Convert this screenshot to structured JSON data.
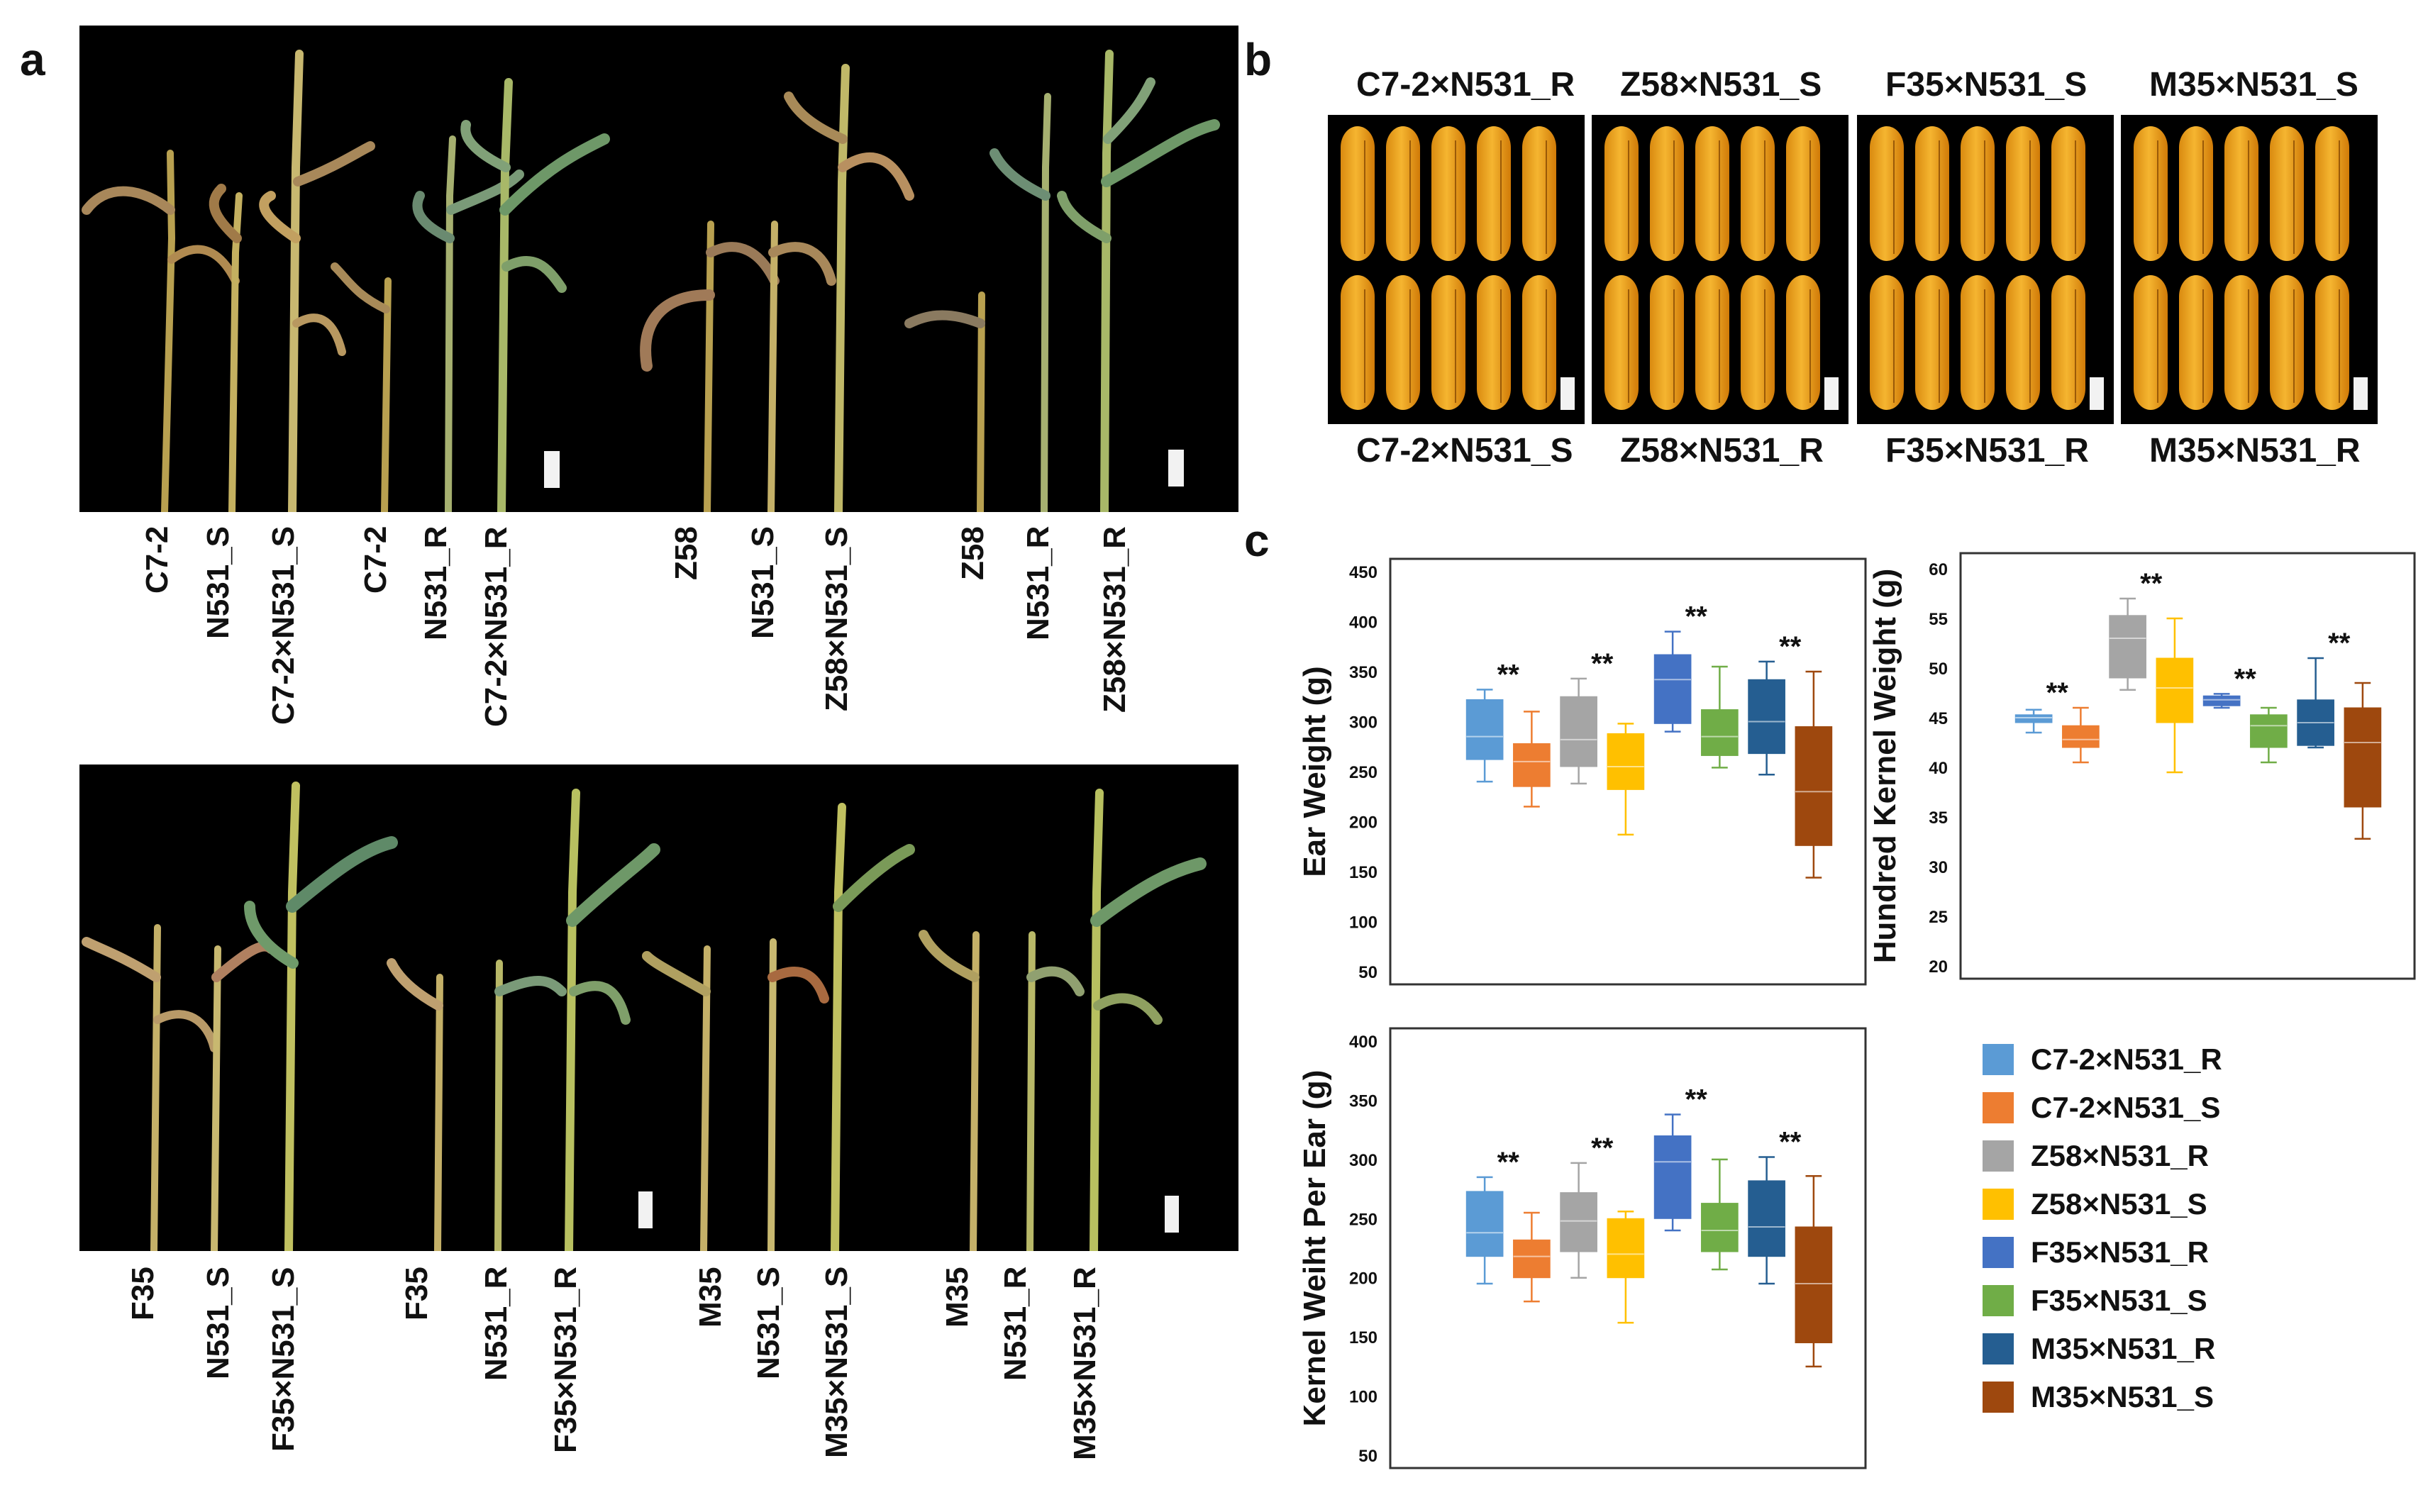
{
  "panels": {
    "a": "a",
    "b": "b",
    "c": "c"
  },
  "panel_a": {
    "photo_top_labels": [
      "C7-2",
      "N531_S",
      "C7-2×N531_S",
      "C7-2",
      "N531_R",
      "C7-2×N531_R",
      "Z58",
      "N531_S",
      "Z58×N531_S",
      "Z58",
      "N531_R",
      "Z58×N531_R"
    ],
    "photo_bottom_labels": [
      "F35",
      "N531_S",
      "F35×N531_S",
      "F35",
      "N531_R",
      "F35×N531_R",
      "M35",
      "N531_S",
      "M35×N531_S",
      "M35",
      "N531_R",
      "M35×N531_R"
    ]
  },
  "panel_b": {
    "top_labels": [
      "C7-2×N531_R",
      "Z58×N531_S",
      "F35×N531_S",
      "M35×N531_S"
    ],
    "bottom_labels": [
      "C7-2×N531_S",
      "Z58×N531_R",
      "F35×N531_R",
      "M35×N531_R"
    ]
  },
  "chart_data": [
    {
      "type": "box",
      "ylabel": "Ear Weight (g)",
      "ylim": [
        50,
        450
      ],
      "yticks": [
        50,
        100,
        150,
        200,
        250,
        300,
        350,
        400,
        450
      ],
      "series": [
        {
          "name": "C7-2×N531_R",
          "min": 240,
          "q1": 262,
          "median": 285,
          "q3": 322,
          "max": 332
        },
        {
          "name": "C7-2×N531_S",
          "min": 215,
          "q1": 235,
          "median": 260,
          "q3": 278,
          "max": 310
        },
        {
          "name": "Z58×N531_R",
          "min": 238,
          "q1": 255,
          "median": 282,
          "q3": 325,
          "max": 343
        },
        {
          "name": "Z58×N531_S",
          "min": 187,
          "q1": 232,
          "median": 255,
          "q3": 288,
          "max": 298
        },
        {
          "name": "F35×N531_R",
          "min": 290,
          "q1": 298,
          "median": 342,
          "q3": 367,
          "max": 390
        },
        {
          "name": "F35×N531_S",
          "min": 254,
          "q1": 266,
          "median": 285,
          "q3": 312,
          "max": 355
        },
        {
          "name": "M35×N531_R",
          "min": 247,
          "q1": 268,
          "median": 300,
          "q3": 342,
          "max": 360
        },
        {
          "name": "M35×N531_S",
          "min": 144,
          "q1": 176,
          "median": 230,
          "q3": 295,
          "max": 350
        }
      ],
      "annotations": [
        {
          "text": "**",
          "pair": [
            0,
            1
          ]
        },
        {
          "text": "**",
          "pair": [
            2,
            3
          ]
        },
        {
          "text": "**",
          "pair": [
            4,
            5
          ]
        },
        {
          "text": "**",
          "pair": [
            6,
            7
          ]
        }
      ]
    },
    {
      "type": "box",
      "ylabel": "Hundred Kernel Weight (g)",
      "ylim": [
        20,
        60
      ],
      "yticks": [
        20,
        25,
        30,
        35,
        40,
        45,
        50,
        55,
        60
      ],
      "series": [
        {
          "name": "C7-2×N531_R",
          "min": 43.5,
          "q1": 44.5,
          "median": 45.0,
          "q3": 45.3,
          "max": 45.8
        },
        {
          "name": "C7-2×N531_S",
          "min": 40.5,
          "q1": 42.0,
          "median": 42.8,
          "q3": 44.2,
          "max": 46.0
        },
        {
          "name": "Z58×N531_R",
          "min": 47.8,
          "q1": 49.0,
          "median": 53.0,
          "q3": 55.3,
          "max": 57.0
        },
        {
          "name": "Z58×N531_S",
          "min": 39.5,
          "q1": 44.5,
          "median": 48.0,
          "q3": 51.0,
          "max": 55.0
        },
        {
          "name": "F35×N531_R",
          "min": 46.0,
          "q1": 46.2,
          "median": 46.8,
          "q3": 47.2,
          "max": 47.4
        },
        {
          "name": "F35×N531_S",
          "min": 40.5,
          "q1": 42.0,
          "median": 44.2,
          "q3": 45.3,
          "max": 46.0
        },
        {
          "name": "M35×N531_R",
          "min": 42.0,
          "q1": 42.2,
          "median": 44.5,
          "q3": 46.8,
          "max": 51.0
        },
        {
          "name": "M35×N531_S",
          "min": 32.8,
          "q1": 36.0,
          "median": 42.5,
          "q3": 46.0,
          "max": 48.5
        }
      ],
      "annotations": [
        {
          "text": "**",
          "pair": [
            0,
            1
          ]
        },
        {
          "text": "**",
          "pair": [
            2,
            3
          ]
        },
        {
          "text": "**",
          "pair": [
            4,
            5
          ]
        },
        {
          "text": "**",
          "pair": [
            6,
            7
          ]
        }
      ]
    },
    {
      "type": "box",
      "ylabel": "Kernel Weiht Per Ear (g)",
      "ylim": [
        50,
        400
      ],
      "yticks": [
        50,
        100,
        150,
        200,
        250,
        300,
        350,
        400
      ],
      "series": [
        {
          "name": "C7-2×N531_R",
          "min": 195,
          "q1": 218,
          "median": 238,
          "q3": 273,
          "max": 285
        },
        {
          "name": "C7-2×N531_S",
          "min": 180,
          "q1": 200,
          "median": 218,
          "q3": 232,
          "max": 255
        },
        {
          "name": "Z58×N531_R",
          "min": 200,
          "q1": 222,
          "median": 248,
          "q3": 272,
          "max": 297
        },
        {
          "name": "Z58×N531_S",
          "min": 162,
          "q1": 200,
          "median": 220,
          "q3": 250,
          "max": 256
        },
        {
          "name": "F35×N531_R",
          "min": 240,
          "q1": 250,
          "median": 298,
          "q3": 320,
          "max": 338
        },
        {
          "name": "F35×N531_S",
          "min": 207,
          "q1": 222,
          "median": 240,
          "q3": 263,
          "max": 300
        },
        {
          "name": "M35×N531_R",
          "min": 195,
          "q1": 218,
          "median": 243,
          "q3": 282,
          "max": 302
        },
        {
          "name": "M35×N531_S",
          "min": 125,
          "q1": 145,
          "median": 195,
          "q3": 243,
          "max": 286
        }
      ],
      "annotations": [
        {
          "text": "**",
          "pair": [
            0,
            1
          ]
        },
        {
          "text": "**",
          "pair": [
            2,
            3
          ]
        },
        {
          "text": "**",
          "pair": [
            4,
            5
          ]
        },
        {
          "text": "**",
          "pair": [
            6,
            7
          ]
        }
      ]
    }
  ],
  "legend": [
    {
      "label": "C7-2×N531_R",
      "color": "#5B9BD5"
    },
    {
      "label": "C7-2×N531_S",
      "color": "#ED7D31"
    },
    {
      "label": "Z58×N531_R",
      "color": "#A5A5A5"
    },
    {
      "label": "Z58×N531_S",
      "color": "#FFC000"
    },
    {
      "label": "F35×N531_R",
      "color": "#4472C4"
    },
    {
      "label": "F35×N531_S",
      "color": "#70AD47"
    },
    {
      "label": "M35×N531_R",
      "color": "#255E91"
    },
    {
      "label": "M35×N531_S",
      "color": "#9E480E"
    }
  ]
}
